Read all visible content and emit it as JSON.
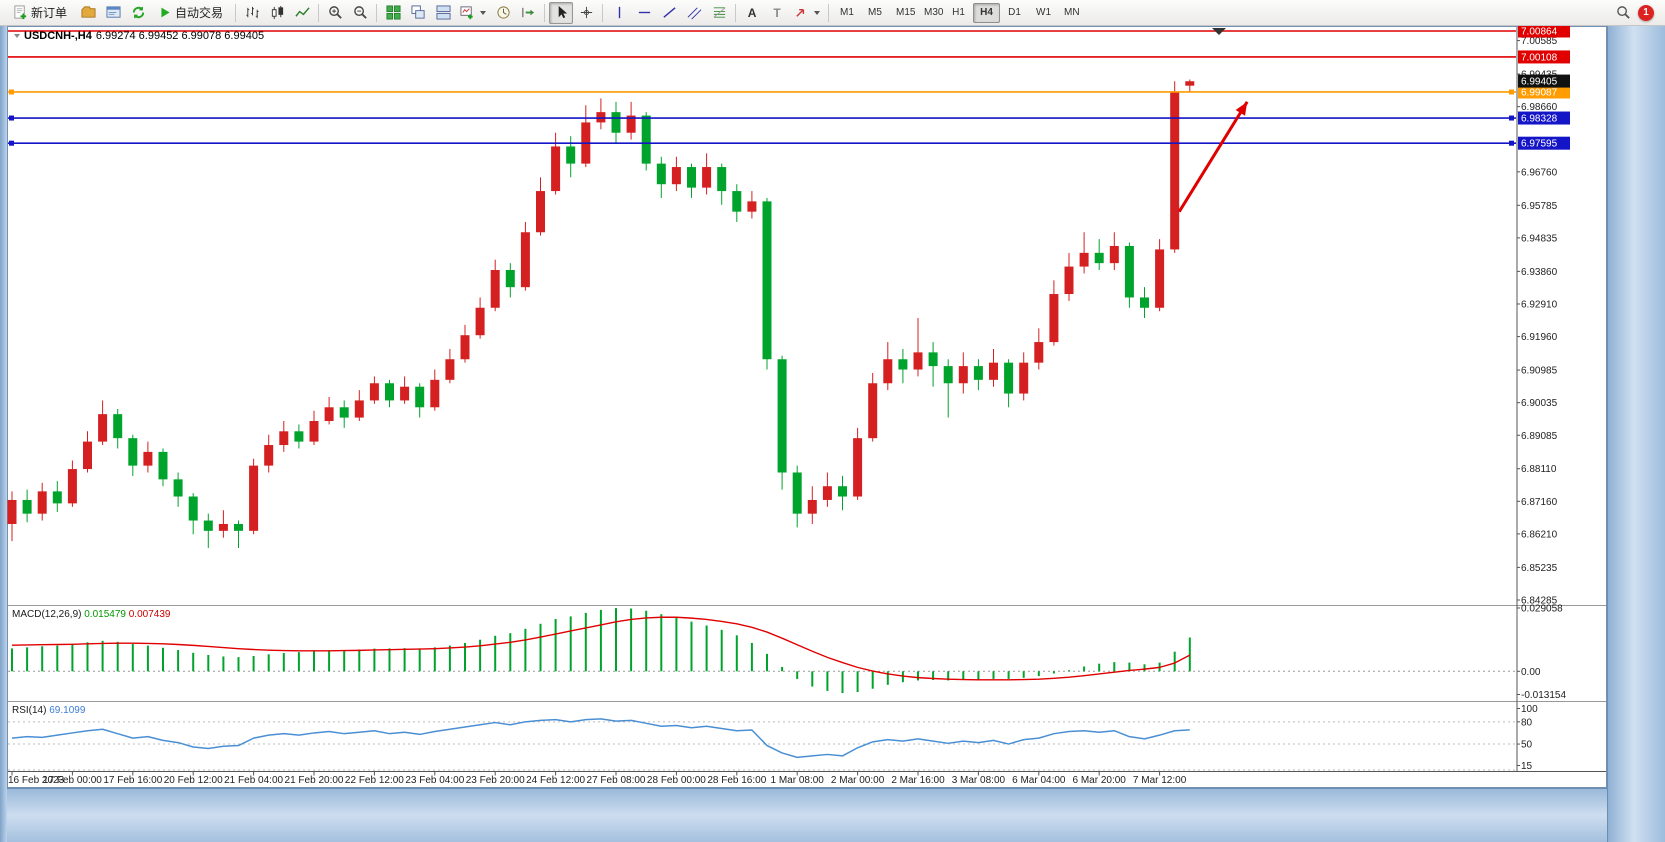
{
  "window": {
    "notification_count": "1"
  },
  "toolbar": {
    "new_order": "新订单",
    "auto_trading": "自动交易",
    "text_icon": "A",
    "label_icon": "T",
    "timeframes": [
      "M1",
      "M5",
      "M15",
      "M30",
      "H1",
      "H4",
      "D1",
      "W1",
      "MN"
    ],
    "active_timeframe": "H4"
  },
  "chart_header": {
    "symbol": "USDCNH-,H4",
    "ohlc": "6.99274 6.99452 6.99078 6.99405"
  },
  "chart_data": {
    "type": "candlestick",
    "symbol": "USDCNH-",
    "timeframe": "H4",
    "colors": {
      "bull": "#d42020",
      "bear": "#00a42c",
      "macd_hist": "#00a42c",
      "macd_signal": "#e00000",
      "rsi_line": "#4a8fd4"
    },
    "price_axis_ticks": [
      "7.00585",
      "6.99435",
      "6.98660",
      "6.96760",
      "6.95785",
      "6.94835",
      "6.93860",
      "6.92910",
      "6.91960",
      "6.90985",
      "6.90035",
      "6.89085",
      "6.88110",
      "6.87160",
      "6.86210",
      "6.85235",
      "6.84285"
    ],
    "price_lines": [
      {
        "label": "7.00864",
        "price": 7.00864,
        "color": "#e00000",
        "width": 1.6,
        "handles": false
      },
      {
        "label": "7.00108",
        "price": 7.00108,
        "color": "#e00000",
        "width": 1.6,
        "handles": false
      },
      {
        "label": "6.99087",
        "price": 6.99087,
        "color": "#ff9c00",
        "width": 1.6,
        "handles": true
      },
      {
        "label": "6.98328",
        "price": 6.98328,
        "color": "#1515c8",
        "width": 1.6,
        "handles": true
      },
      {
        "label": "6.97595",
        "price": 6.97595,
        "color": "#1515c8",
        "width": 1.6,
        "handles": true
      }
    ],
    "current_price": 6.99405,
    "current_price_label": "6.99405",
    "candles": {
      "open": [
        6.865,
        6.872,
        6.868,
        6.8745,
        6.871,
        6.881,
        6.889,
        6.897,
        6.89,
        6.882,
        6.886,
        6.878,
        6.873,
        6.866,
        6.863,
        6.865,
        6.863,
        6.882,
        6.888,
        6.892,
        6.889,
        6.895,
        6.899,
        6.896,
        6.901,
        6.906,
        6.901,
        6.905,
        6.899,
        6.907,
        6.913,
        6.92,
        6.928,
        6.939,
        6.934,
        6.95,
        6.962,
        6.975,
        6.97,
        6.982,
        6.985,
        6.979,
        6.984,
        6.97,
        6.964,
        6.969,
        6.963,
        6.969,
        6.962,
        6.956,
        6.959,
        6.913,
        6.88,
        6.868,
        6.872,
        6.876,
        6.873,
        6.89,
        6.906,
        6.913,
        6.91,
        6.915,
        6.911,
        6.906,
        6.911,
        6.907,
        6.912,
        6.903,
        6.912,
        6.918,
        6.932,
        6.94,
        6.944,
        6.941,
        6.946,
        6.931,
        6.928,
        6.945,
        6.9927
      ],
      "high": [
        6.8745,
        6.875,
        6.877,
        6.8775,
        6.8835,
        6.892,
        6.901,
        6.8985,
        6.891,
        6.889,
        6.887,
        6.88,
        6.874,
        6.868,
        6.869,
        6.866,
        6.884,
        6.891,
        6.895,
        6.894,
        6.898,
        6.902,
        6.901,
        6.904,
        6.908,
        6.907,
        6.908,
        6.906,
        6.91,
        6.916,
        6.923,
        6.931,
        6.942,
        6.941,
        6.953,
        6.966,
        6.979,
        6.978,
        6.987,
        6.989,
        6.988,
        6.988,
        6.985,
        6.972,
        6.972,
        6.97,
        6.973,
        6.97,
        6.964,
        6.962,
        6.96,
        6.914,
        6.882,
        6.876,
        6.88,
        6.879,
        6.893,
        6.909,
        6.918,
        6.916,
        6.925,
        6.918,
        6.913,
        6.915,
        6.913,
        6.916,
        6.913,
        6.915,
        6.922,
        6.936,
        6.944,
        6.95,
        6.948,
        6.95,
        6.947,
        6.934,
        6.948,
        6.994,
        6.9945
      ],
      "low": [
        6.86,
        6.8655,
        6.866,
        6.8685,
        6.87,
        6.88,
        6.888,
        6.887,
        6.879,
        6.88,
        6.876,
        6.87,
        6.862,
        6.858,
        6.861,
        6.858,
        6.862,
        6.88,
        6.886,
        6.887,
        6.888,
        6.894,
        6.893,
        6.895,
        6.9,
        6.899,
        6.9,
        6.896,
        6.898,
        6.906,
        6.912,
        6.919,
        6.927,
        6.931,
        6.933,
        6.949,
        6.961,
        6.966,
        6.969,
        6.98,
        6.976,
        6.977,
        6.968,
        6.96,
        6.962,
        6.96,
        6.961,
        6.958,
        6.953,
        6.954,
        6.91,
        6.875,
        6.864,
        6.865,
        6.87,
        6.869,
        6.872,
        6.889,
        6.904,
        6.906,
        6.908,
        6.905,
        6.896,
        6.903,
        6.904,
        6.905,
        6.899,
        6.901,
        6.91,
        6.917,
        6.93,
        6.938,
        6.939,
        6.939,
        6.928,
        6.925,
        6.927,
        6.944,
        6.9908
      ],
      "close": [
        6.872,
        6.868,
        6.8745,
        6.871,
        6.881,
        6.889,
        6.897,
        6.89,
        6.882,
        6.886,
        6.878,
        6.873,
        6.866,
        6.863,
        6.865,
        6.863,
        6.882,
        6.888,
        6.892,
        6.889,
        6.895,
        6.899,
        6.896,
        6.901,
        6.906,
        6.901,
        6.905,
        6.899,
        6.907,
        6.913,
        6.92,
        6.928,
        6.939,
        6.934,
        6.95,
        6.962,
        6.975,
        6.97,
        6.982,
        6.985,
        6.979,
        6.984,
        6.97,
        6.964,
        6.969,
        6.963,
        6.969,
        6.962,
        6.956,
        6.959,
        6.913,
        6.88,
        6.868,
        6.872,
        6.876,
        6.873,
        6.89,
        6.906,
        6.913,
        6.91,
        6.915,
        6.911,
        6.906,
        6.911,
        6.907,
        6.912,
        6.903,
        6.912,
        6.918,
        6.932,
        6.94,
        6.944,
        6.941,
        6.946,
        6.931,
        6.928,
        6.945,
        6.991,
        6.994
      ]
    },
    "time_labels": [
      {
        "bar": 0,
        "label": "16 Feb 2023"
      },
      {
        "bar": 4,
        "label": "17 Feb 00:00"
      },
      {
        "bar": 8,
        "label": "17 Feb 16:00"
      },
      {
        "bar": 12,
        "label": "20 Feb 12:00"
      },
      {
        "bar": 16,
        "label": "21 Feb 04:00"
      },
      {
        "bar": 20,
        "label": "21 Feb 20:00"
      },
      {
        "bar": 24,
        "label": "22 Feb 12:00"
      },
      {
        "bar": 28,
        "label": "23 Feb 04:00"
      },
      {
        "bar": 32,
        "label": "23 Feb 20:00"
      },
      {
        "bar": 36,
        "label": "24 Feb 12:00"
      },
      {
        "bar": 40,
        "label": "27 Feb 08:00"
      },
      {
        "bar": 44,
        "label": "28 Feb 00:00"
      },
      {
        "bar": 48,
        "label": "28 Feb 16:00"
      },
      {
        "bar": 52,
        "label": "1 Mar 08:00"
      },
      {
        "bar": 56,
        "label": "2 Mar 00:00"
      },
      {
        "bar": 60,
        "label": "2 Mar 16:00"
      },
      {
        "bar": 64,
        "label": "3 Mar 08:00"
      },
      {
        "bar": 68,
        "label": "6 Mar 04:00"
      },
      {
        "bar": 72,
        "label": "6 Mar 20:00"
      },
      {
        "bar": 76,
        "label": "7 Mar 12:00"
      }
    ],
    "macd": {
      "title": "MACD(12,26,9)",
      "main_value": "0.015479",
      "signal_value": "0.007439",
      "axis_labels": [
        "0.029058",
        "0.00",
        "-0.013154"
      ],
      "histogram": [
        0.0105,
        0.011,
        0.0115,
        0.0118,
        0.0125,
        0.0133,
        0.014,
        0.0135,
        0.0125,
        0.0118,
        0.0108,
        0.0098,
        0.0085,
        0.0075,
        0.0068,
        0.0065,
        0.007,
        0.0078,
        0.0084,
        0.0088,
        0.0092,
        0.0096,
        0.0098,
        0.01,
        0.0104,
        0.0105,
        0.0106,
        0.0105,
        0.011,
        0.0118,
        0.013,
        0.0145,
        0.0163,
        0.0175,
        0.0195,
        0.0218,
        0.024,
        0.0252,
        0.0268,
        0.0282,
        0.029,
        0.0288,
        0.0278,
        0.0262,
        0.0245,
        0.0228,
        0.021,
        0.019,
        0.0165,
        0.013,
        0.008,
        0.002,
        -0.0035,
        -0.007,
        -0.009,
        -0.01,
        -0.0095,
        -0.008,
        -0.0062,
        -0.005,
        -0.0042,
        -0.004,
        -0.0042,
        -0.004,
        -0.0038,
        -0.0035,
        -0.0035,
        -0.003,
        -0.0022,
        -0.001,
        0.0005,
        0.0022,
        0.0035,
        0.0042,
        0.004,
        0.0032,
        0.004,
        0.009,
        0.0155
      ],
      "signal": [
        0.012,
        0.0121,
        0.0122,
        0.0123,
        0.0124,
        0.0126,
        0.0128,
        0.0129,
        0.0129,
        0.0128,
        0.0126,
        0.0123,
        0.0119,
        0.0114,
        0.0109,
        0.0104,
        0.01,
        0.0097,
        0.0095,
        0.0094,
        0.0094,
        0.0094,
        0.0095,
        0.0096,
        0.0098,
        0.0099,
        0.0101,
        0.0102,
        0.0104,
        0.0107,
        0.0111,
        0.0117,
        0.0125,
        0.0133,
        0.0144,
        0.0157,
        0.0171,
        0.0185,
        0.0199,
        0.0213,
        0.0227,
        0.0238,
        0.0245,
        0.0248,
        0.0248,
        0.0244,
        0.0238,
        0.0229,
        0.0218,
        0.0202,
        0.018,
        0.0152,
        0.0122,
        0.0092,
        0.0064,
        0.004,
        0.0018,
        0.0001,
        -0.0012,
        -0.0022,
        -0.0029,
        -0.0033,
        -0.0036,
        -0.0038,
        -0.0039,
        -0.0039,
        -0.0039,
        -0.0038,
        -0.0036,
        -0.0032,
        -0.0027,
        -0.002,
        -0.0012,
        -0.0004,
        0.0004,
        0.001,
        0.0018,
        0.0038,
        0.0074
      ]
    },
    "rsi": {
      "title": "RSI(14)",
      "value": "69.1099",
      "axis_labels": [
        "100",
        "80",
        "50",
        "15"
      ],
      "level_lines": [
        80,
        50,
        15
      ],
      "values": [
        58,
        60,
        59,
        62,
        65,
        68,
        70,
        64,
        58,
        60,
        55,
        52,
        46,
        44,
        47,
        48,
        58,
        62,
        64,
        62,
        65,
        67,
        64,
        66,
        68,
        64,
        66,
        63,
        67,
        70,
        73,
        76,
        79,
        76,
        80,
        82,
        83,
        80,
        83,
        84,
        81,
        82,
        78,
        74,
        75,
        72,
        74,
        71,
        68,
        69,
        48,
        38,
        32,
        34,
        36,
        34,
        45,
        53,
        56,
        54,
        57,
        54,
        51,
        54,
        52,
        55,
        50,
        56,
        58,
        64,
        67,
        68,
        66,
        68,
        60,
        57,
        62,
        68,
        69.11
      ]
    },
    "arrow": {
      "from_bar": 77.3,
      "from_price": 6.956,
      "to_bar": 81.8,
      "to_price": 6.988,
      "color": "#e00000"
    }
  }
}
